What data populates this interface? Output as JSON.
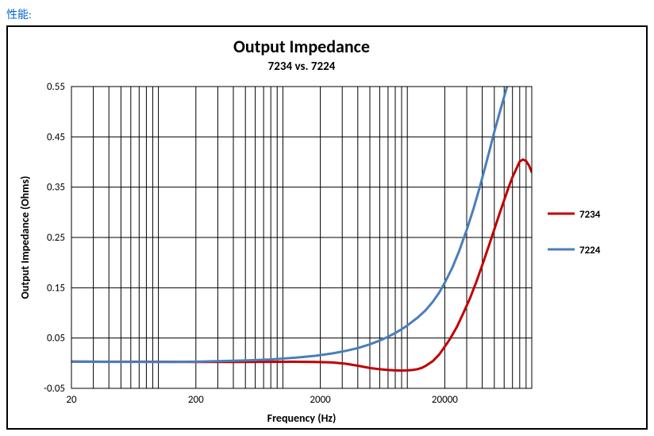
{
  "header_label": "性能:",
  "chart": {
    "type": "line",
    "title": "Output Impedance",
    "subtitle": "7234 vs. 7224",
    "x_label": "Frequency (Hz)",
    "y_label": "Output Impedance (Ohms)",
    "title_fontsize": 22,
    "subtitle_fontsize": 15,
    "axis_label_fontsize": 14,
    "tick_fontsize": 13,
    "x_scale": "log",
    "y_scale": "linear",
    "xlim": [
      20,
      100000
    ],
    "ylim": [
      -0.05,
      0.55
    ],
    "x_ticks": [
      20,
      200,
      2000,
      20000
    ],
    "x_tick_labels": [
      "20",
      "200",
      "2000",
      "20000"
    ],
    "y_ticks": [
      -0.05,
      0.05,
      0.15,
      0.25,
      0.35,
      0.45,
      0.55
    ],
    "y_tick_labels": [
      "-0.05",
      "0.05",
      "0.15",
      "0.25",
      "0.35",
      "0.45",
      "0.55"
    ],
    "plot_border_color": "#000000",
    "plot_border_width": 1,
    "grid_color": "#000000",
    "grid_width": 1,
    "minor_grid_color": "#000000",
    "minor_grid_width": 1,
    "background_color": "#ffffff",
    "series": [
      {
        "name": "7234",
        "color": "#c00000",
        "line_width": 3,
        "data": [
          [
            20,
            0.0032
          ],
          [
            30,
            0.003
          ],
          [
            50,
            0.0029
          ],
          [
            80,
            0.0028
          ],
          [
            120,
            0.0027
          ],
          [
            200,
            0.0026
          ],
          [
            300,
            0.0026
          ],
          [
            500,
            0.0026
          ],
          [
            800,
            0.0027
          ],
          [
            1200,
            0.0028
          ],
          [
            1800,
            0.0026
          ],
          [
            2500,
            0.0015
          ],
          [
            3200,
            -0.001
          ],
          [
            4000,
            -0.005
          ],
          [
            5000,
            -0.0095
          ],
          [
            6000,
            -0.012
          ],
          [
            7000,
            -0.0135
          ],
          [
            8000,
            -0.0142
          ],
          [
            9000,
            -0.0146
          ],
          [
            10000,
            -0.0143
          ],
          [
            11000,
            -0.0135
          ],
          [
            12000,
            -0.012
          ],
          [
            13000,
            -0.0095
          ],
          [
            14000,
            -0.0055
          ],
          [
            16000,
            0.004
          ],
          [
            18000,
            0.017
          ],
          [
            20000,
            0.033
          ],
          [
            22000,
            0.048
          ],
          [
            25000,
            0.072
          ],
          [
            28000,
            0.098
          ],
          [
            32000,
            0.13
          ],
          [
            36000,
            0.163
          ],
          [
            40000,
            0.195
          ],
          [
            45000,
            0.232
          ],
          [
            50000,
            0.266
          ],
          [
            55000,
            0.297
          ],
          [
            60000,
            0.324
          ],
          [
            65000,
            0.349
          ],
          [
            70000,
            0.37
          ],
          [
            75000,
            0.386
          ],
          [
            80000,
            0.401
          ],
          [
            85000,
            0.405
          ],
          [
            90000,
            0.402
          ],
          [
            95000,
            0.393
          ],
          [
            100000,
            0.38
          ]
        ]
      },
      {
        "name": "7224",
        "color": "#4a7ebb",
        "line_width": 3,
        "data": [
          [
            20,
            0.003
          ],
          [
            30,
            0.0028
          ],
          [
            50,
            0.0027
          ],
          [
            80,
            0.0025
          ],
          [
            120,
            0.0026
          ],
          [
            200,
            0.003
          ],
          [
            300,
            0.004
          ],
          [
            500,
            0.0055
          ],
          [
            800,
            0.0075
          ],
          [
            1200,
            0.0105
          ],
          [
            1800,
            0.0145
          ],
          [
            2500,
            0.0195
          ],
          [
            3200,
            0.0245
          ],
          [
            4000,
            0.03
          ],
          [
            5000,
            0.0375
          ],
          [
            6000,
            0.045
          ],
          [
            7000,
            0.0525
          ],
          [
            8000,
            0.06
          ],
          [
            9000,
            0.0675
          ],
          [
            10000,
            0.075
          ],
          [
            12000,
            0.09
          ],
          [
            14000,
            0.105
          ],
          [
            16000,
            0.122
          ],
          [
            18000,
            0.14
          ],
          [
            20000,
            0.16
          ],
          [
            23000,
            0.19
          ],
          [
            26000,
            0.222
          ],
          [
            30000,
            0.265
          ],
          [
            34000,
            0.307
          ],
          [
            38000,
            0.348
          ],
          [
            42000,
            0.388
          ],
          [
            46000,
            0.425
          ],
          [
            50000,
            0.46
          ],
          [
            55000,
            0.497
          ],
          [
            60000,
            0.53
          ],
          [
            65000,
            0.56
          ],
          [
            70000,
            0.588
          ]
        ]
      }
    ],
    "legend": {
      "position_note": "right-outside"
    }
  }
}
